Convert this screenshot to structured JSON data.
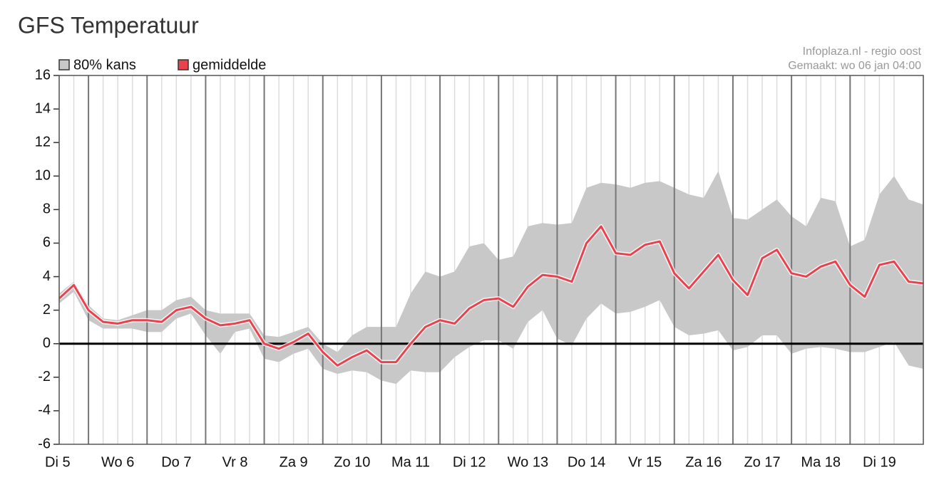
{
  "chart_data": {
    "type": "line",
    "title": "GFS Temperatuur",
    "source": [
      "Infoplaza.nl - regio oost",
      "Gemaakt: wo 06 jan 04:00"
    ],
    "x": [
      5.5,
      5.75,
      6,
      6.25,
      6.5,
      6.75,
      7,
      7.25,
      7.5,
      7.75,
      8,
      8.25,
      8.5,
      8.75,
      9,
      9.25,
      9.5,
      9.75,
      10,
      10.25,
      10.5,
      10.75,
      11,
      11.25,
      11.5,
      11.75,
      12,
      12.25,
      12.5,
      12.75,
      13,
      13.25,
      13.5,
      13.75,
      14,
      14.25,
      14.5,
      14.75,
      15,
      15.25,
      15.5,
      15.75,
      16,
      16.25,
      16.5,
      16.75,
      17,
      17.25,
      17.5,
      17.75,
      18,
      18.25,
      18.5,
      18.75,
      19,
      19.25,
      19.5,
      19.75,
      20,
      20.25
    ],
    "xlim": [
      5.5,
      20.25
    ],
    "xticks": [
      {
        "value": 5,
        "label": "Di 5"
      },
      {
        "value": 6,
        "label": "Wo 6"
      },
      {
        "value": 7,
        "label": "Do 7"
      },
      {
        "value": 8,
        "label": "Vr 8"
      },
      {
        "value": 9,
        "label": "Za 9"
      },
      {
        "value": 10,
        "label": "Zo 10"
      },
      {
        "value": 11,
        "label": "Ma 11"
      },
      {
        "value": 12,
        "label": "Di 12"
      },
      {
        "value": 13,
        "label": "Wo 13"
      },
      {
        "value": 14,
        "label": "Do 14"
      },
      {
        "value": 15,
        "label": "Vr 15"
      },
      {
        "value": 16,
        "label": "Za 16"
      },
      {
        "value": 17,
        "label": "Zo 17"
      },
      {
        "value": 18,
        "label": "Ma 18"
      },
      {
        "value": 19,
        "label": "Di 19"
      }
    ],
    "ylim": [
      -6,
      16
    ],
    "yticks": [
      -6,
      -4,
      -2,
      0,
      2,
      4,
      6,
      8,
      10,
      12,
      14,
      16
    ],
    "zero_line": true,
    "legend": "top-left",
    "series": [
      {
        "name": "80% kans",
        "color": "#c8c8c8",
        "high": [
          3.0,
          3.7,
          2.3,
          1.5,
          1.4,
          1.7,
          2.0,
          2.0,
          2.6,
          2.8,
          2.0,
          1.8,
          1.8,
          1.8,
          0.5,
          0.4,
          0.7,
          1.0,
          0.0,
          -0.5,
          0.5,
          1.0,
          1.0,
          1.0,
          3.0,
          4.3,
          4.0,
          4.3,
          5.8,
          6.0,
          5.0,
          5.2,
          7.0,
          7.2,
          7.1,
          7.2,
          9.3,
          9.6,
          9.5,
          9.3,
          9.6,
          9.7,
          9.3,
          8.9,
          8.7,
          10.3,
          7.5,
          7.4,
          8.0,
          8.6,
          7.6,
          7.0,
          8.7,
          8.5,
          5.8,
          6.2,
          8.9,
          10.0,
          8.6,
          8.3
        ],
        "low": [
          2.4,
          3.1,
          1.4,
          0.9,
          0.9,
          0.9,
          0.7,
          0.7,
          1.5,
          1.8,
          0.5,
          -0.6,
          0.7,
          0.9,
          -0.9,
          -1.1,
          -0.6,
          -0.3,
          -1.5,
          -1.8,
          -1.6,
          -1.7,
          -2.2,
          -2.4,
          -1.6,
          -1.7,
          -1.7,
          -0.8,
          -0.2,
          0.2,
          0.2,
          -0.3,
          1.3,
          2.0,
          0.3,
          -0.1,
          1.5,
          2.4,
          1.8,
          1.9,
          2.2,
          2.6,
          1.0,
          0.5,
          0.6,
          0.8,
          -0.4,
          -0.2,
          0.5,
          0.5,
          -0.6,
          -0.3,
          -0.2,
          -0.3,
          -0.5,
          -0.5,
          -0.2,
          0.1,
          -1.3,
          -1.5
        ]
      },
      {
        "name": "gemiddelde",
        "color": "#e8424e",
        "values": [
          2.7,
          3.5,
          2.0,
          1.3,
          1.2,
          1.4,
          1.4,
          1.3,
          2.0,
          2.2,
          1.5,
          1.1,
          1.2,
          1.4,
          0.0,
          -0.3,
          0.1,
          0.6,
          -0.5,
          -1.3,
          -0.8,
          -0.4,
          -1.1,
          -1.1,
          0.0,
          1.0,
          1.4,
          1.2,
          2.1,
          2.6,
          2.7,
          2.2,
          3.4,
          4.1,
          4.0,
          3.7,
          6.0,
          7.0,
          5.4,
          5.3,
          5.9,
          6.1,
          4.2,
          3.3,
          4.3,
          5.3,
          3.8,
          2.9,
          5.1,
          5.6,
          4.2,
          4.0,
          4.6,
          4.9,
          3.5,
          2.8,
          4.7,
          4.9,
          3.7,
          3.6
        ]
      }
    ]
  }
}
